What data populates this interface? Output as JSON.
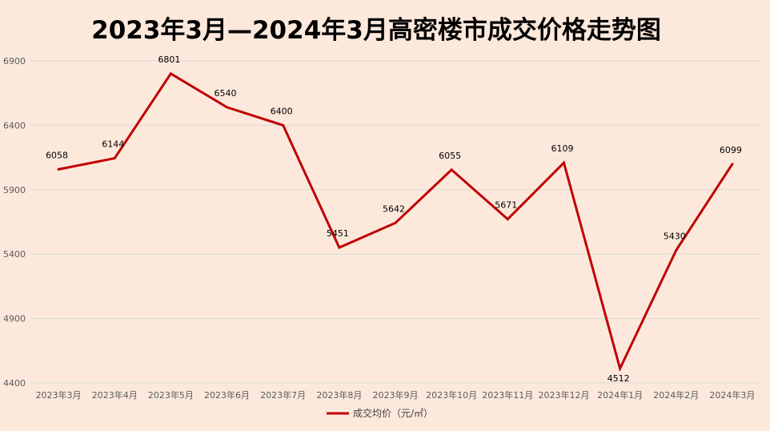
{
  "chart_data": {
    "type": "line",
    "title": "2023年3月—2024年3月高密楼市成交价格走势图",
    "categories": [
      "2023年3月",
      "2023年4月",
      "2023年5月",
      "2023年6月",
      "2023年7月",
      "2023年8月",
      "2023年9月",
      "2023年10月",
      "2023年11月",
      "2023年12月",
      "2024年1月",
      "2024年2月",
      "2024年3月"
    ],
    "series": [
      {
        "name": "成交均价（元/㎡）",
        "values": [
          6058,
          6144,
          6801,
          6540,
          6400,
          5451,
          5642,
          6055,
          5671,
          6109,
          4512,
          5430,
          6099
        ],
        "color": "#c00000"
      }
    ],
    "yticks": [
      4400,
      4900,
      5400,
      5900,
      6400,
      6900
    ],
    "ylim": [
      4400,
      6900
    ],
    "grid": true,
    "legend_position": "bottom"
  }
}
